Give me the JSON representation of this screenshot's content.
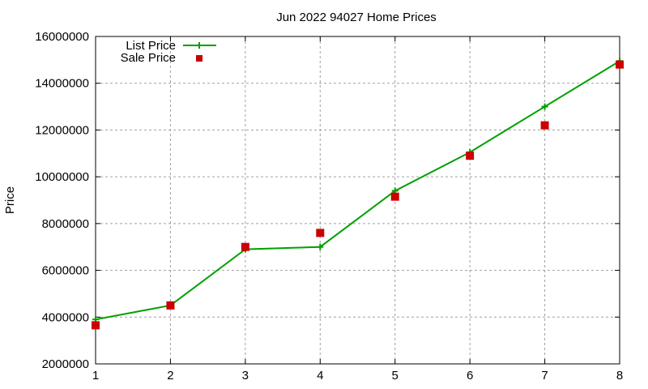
{
  "chart_data": {
    "type": "line",
    "title": "Jun 2022 94027 Home Prices",
    "xlabel": "",
    "ylabel": "Price",
    "x": [
      1,
      2,
      3,
      4,
      5,
      6,
      7,
      8
    ],
    "xlim": [
      1,
      8
    ],
    "ylim": [
      2000000,
      16000000
    ],
    "xticks": [
      "1",
      "2",
      "3",
      "4",
      "5",
      "6",
      "7",
      "8"
    ],
    "yticks": [
      "2000000",
      "4000000",
      "6000000",
      "8000000",
      "10000000",
      "12000000",
      "14000000",
      "16000000"
    ],
    "grid": true,
    "legend_position": "top-left",
    "series": [
      {
        "name": "List Price",
        "style": "linespoints",
        "marker": "plus",
        "color": "#00a000",
        "values": [
          3900000,
          4500000,
          6900000,
          7000000,
          9400000,
          11050000,
          13000000,
          14950000
        ]
      },
      {
        "name": "Sale Price",
        "style": "points",
        "marker": "square",
        "color": "#cc0000",
        "values": [
          3650000,
          4500000,
          7000000,
          7600000,
          9150000,
          10900000,
          12200000,
          14800000
        ]
      }
    ]
  },
  "labels": {
    "title": "Jun 2022 94027 Home Prices",
    "ylabel": "Price",
    "legend_list": "List Price",
    "legend_sale": "Sale Price"
  }
}
